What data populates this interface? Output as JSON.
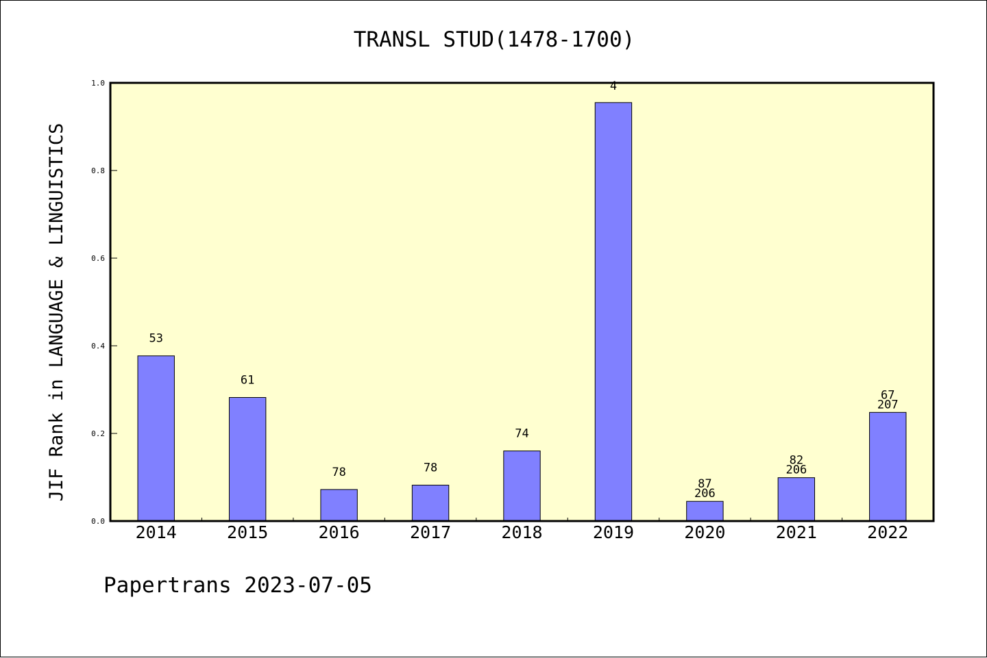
{
  "chart_data": {
    "type": "bar",
    "title": "TRANSL STUD(1478-1700)",
    "ylabel": "JIF Rank in LANGUAGE & LINGUISTICS",
    "xlabel": "",
    "categories": [
      "2014",
      "2015",
      "2016",
      "2017",
      "2018",
      "2019",
      "2020",
      "2021",
      "2022"
    ],
    "values": [
      0.377,
      0.282,
      0.072,
      0.082,
      0.16,
      0.955,
      0.045,
      0.099,
      0.248
    ],
    "bar_labels": [
      [
        "53"
      ],
      [
        "61"
      ],
      [
        "78"
      ],
      [
        "78"
      ],
      [
        "74"
      ],
      [
        "4"
      ],
      [
        "87",
        "206"
      ],
      [
        "82",
        "206"
      ],
      [
        "67",
        "207"
      ]
    ],
    "ylim": [
      0,
      1.0
    ],
    "yticks": [
      "0.0",
      "0.2",
      "0.4",
      "0.6",
      "0.8",
      "1.0"
    ],
    "grid": false,
    "colors": {
      "bar_fill": "#8080ff",
      "plot_background": "#ffffd0",
      "axis": "#000000"
    }
  },
  "footer": {
    "text": "Papertrans 2023-07-05"
  }
}
